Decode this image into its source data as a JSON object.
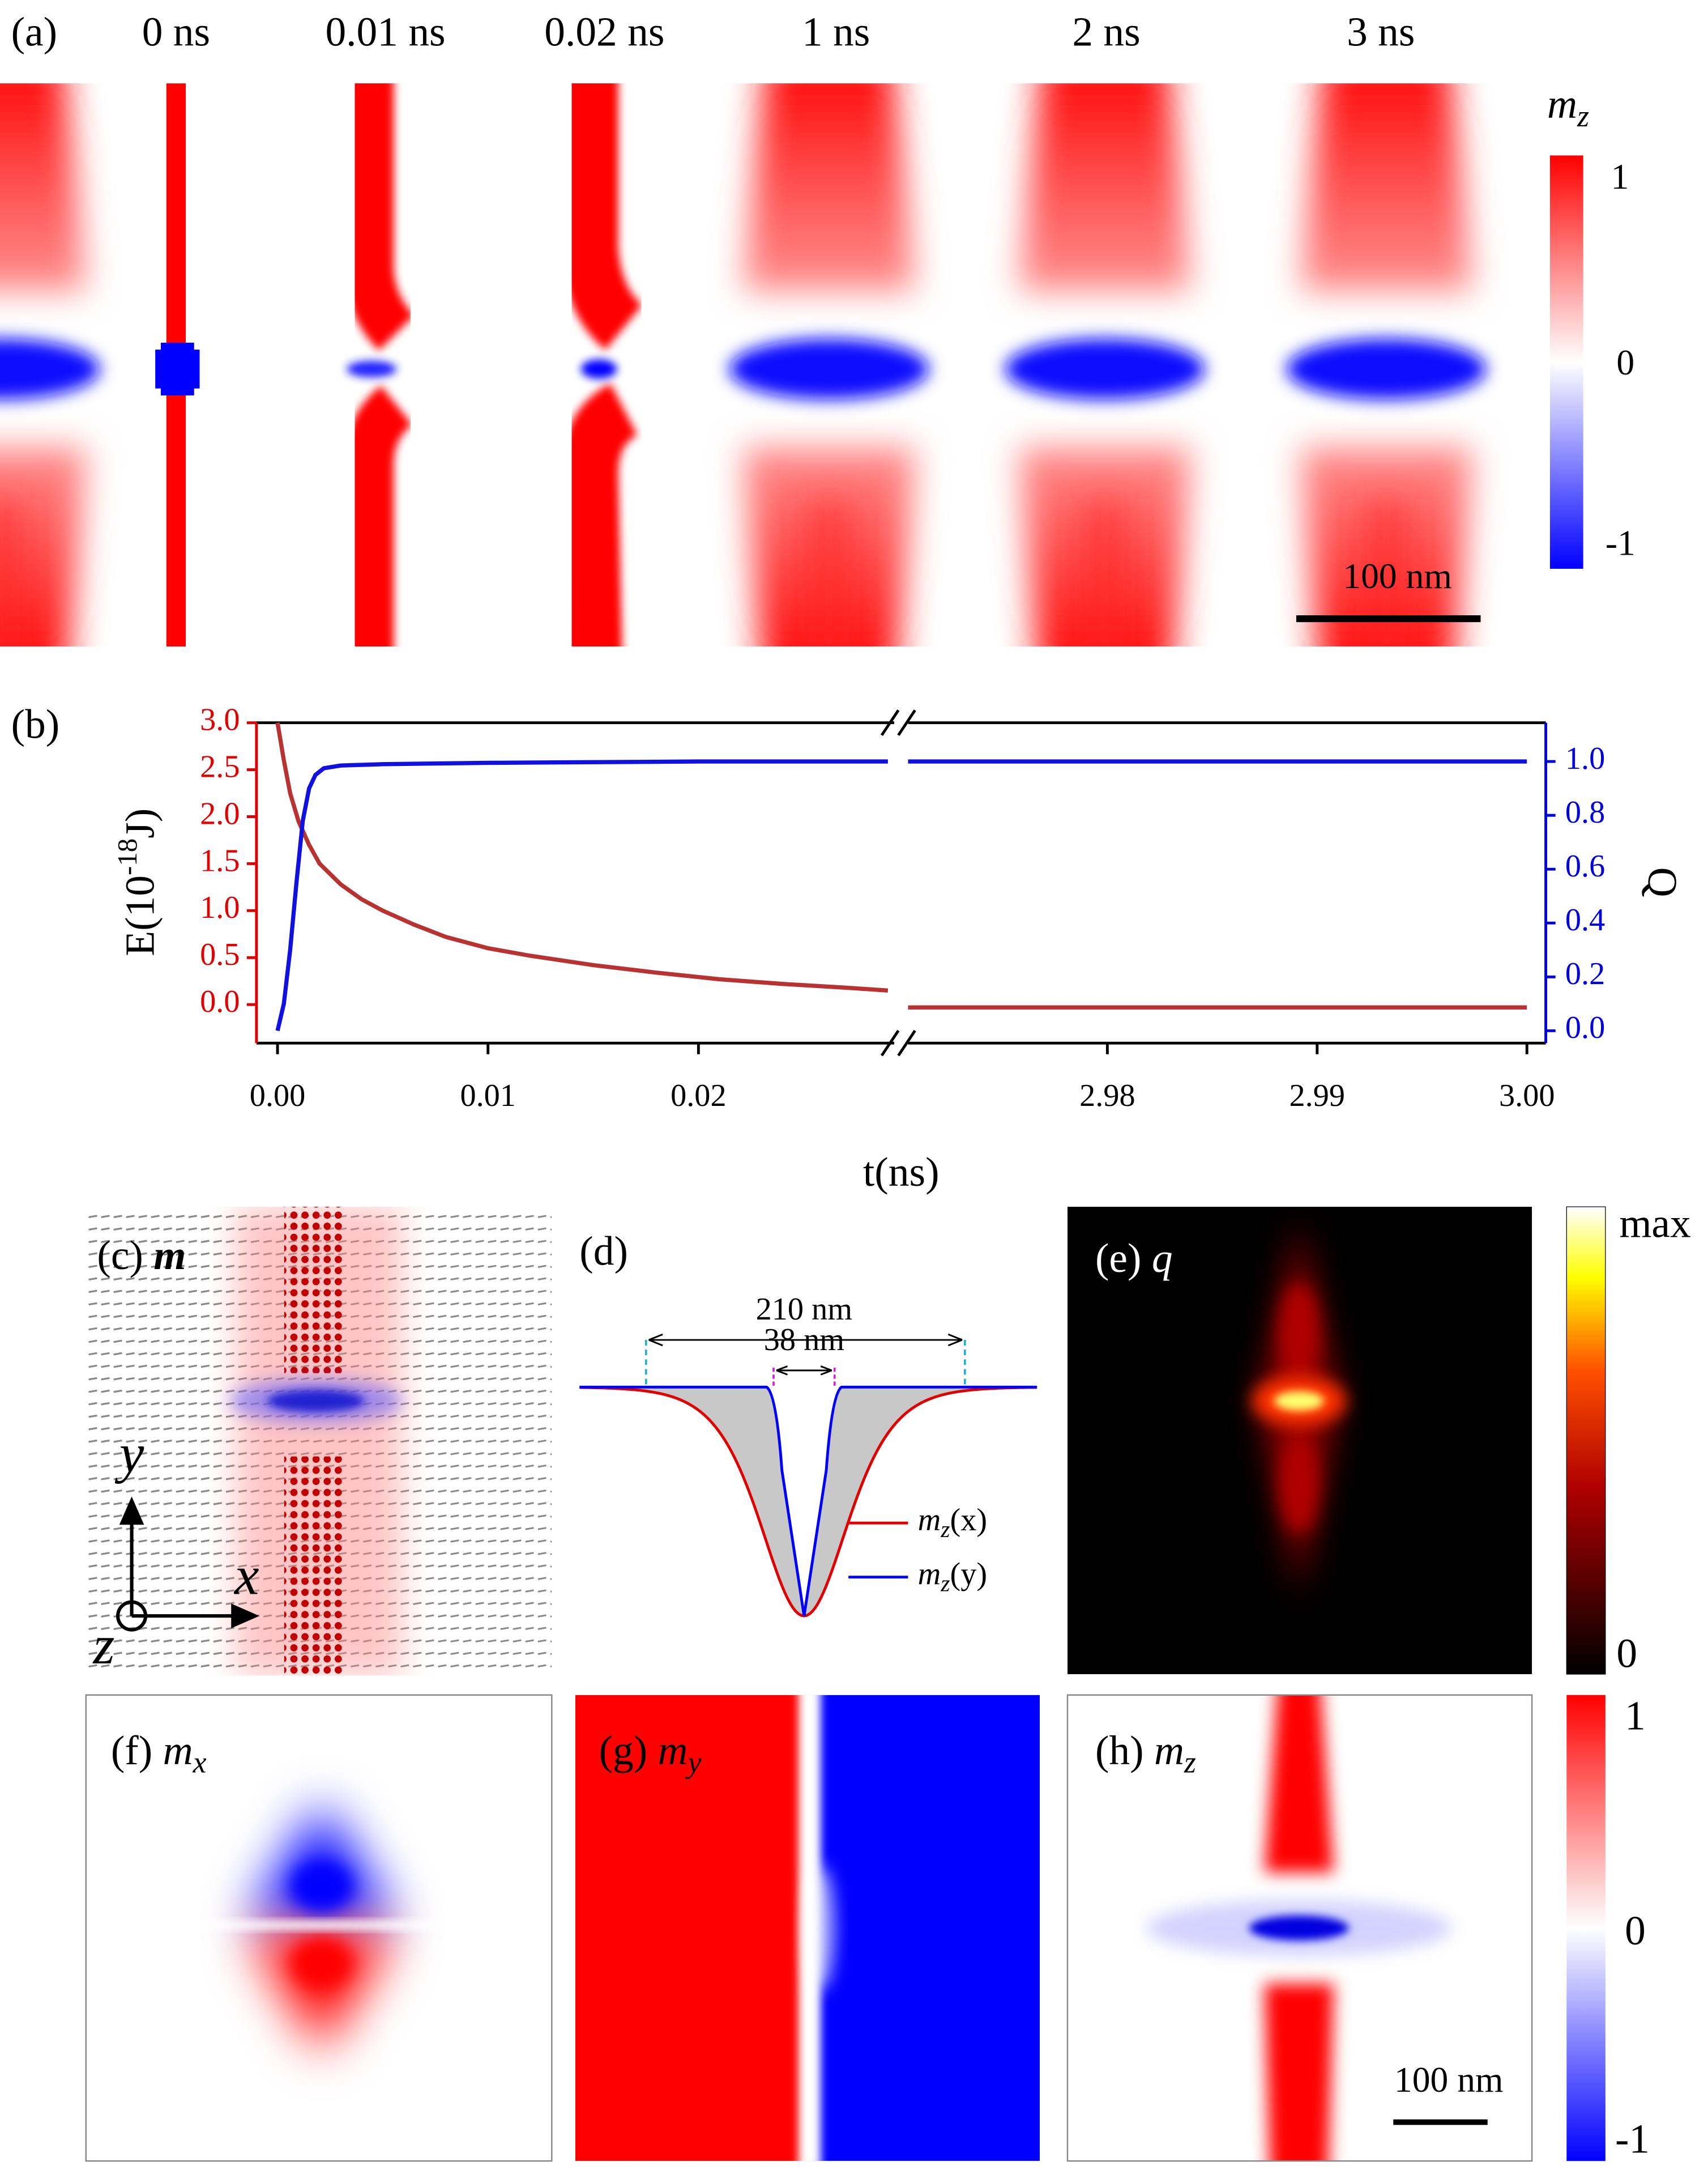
{
  "panel_a": {
    "label": "(a)",
    "times": [
      "0 ns",
      "0.01 ns",
      "0.02 ns",
      "1 ns",
      "2 ns",
      "3 ns"
    ],
    "colorbar_title": {
      "symbol": "m",
      "sub": "z"
    },
    "colorbar_ticks": [
      1,
      0,
      -1
    ],
    "scale_bar": "100 nm"
  },
  "chart_data": {
    "type": "line",
    "label": "(b)",
    "x_label": "t(ns)",
    "y_label": {
      "text": "E(10",
      "sup": "-18",
      "tail": "J)"
    },
    "y2_label": "Q",
    "x_segments": [
      [
        -0.001,
        0.0293
      ],
      [
        2.9705,
        3.0009
      ]
    ],
    "xticks": [
      {
        "value": 0,
        "label": "0.00"
      },
      {
        "value": 0.01,
        "label": "0.01"
      },
      {
        "value": 0.02,
        "label": "0.02"
      },
      {
        "value": 2.98,
        "label": "2.98"
      },
      {
        "value": 2.99,
        "label": "2.99"
      },
      {
        "value": 3,
        "label": "3.00"
      }
    ],
    "ylim": [
      -0.41,
      3.0
    ],
    "yticks": [
      {
        "value": 0,
        "label": "0.0"
      },
      {
        "value": 0.5,
        "label": "0.5"
      },
      {
        "value": 1,
        "label": "1.0"
      },
      {
        "value": 1.5,
        "label": "1.5"
      },
      {
        "value": 2,
        "label": "2.0"
      },
      {
        "value": 2.5,
        "label": "2.5"
      },
      {
        "value": 3,
        "label": "3.0"
      }
    ],
    "y2lim": [
      -0.046,
      1.144
    ],
    "y2ticks": [
      {
        "value": 0,
        "label": "0.0"
      },
      0.2,
      0.4,
      0.6,
      0.8,
      {
        "value": 1,
        "label": "1.0"
      }
    ],
    "y_color": "#e00000",
    "y2_color": "#0000e0",
    "series": [
      {
        "color": "#b83232",
        "axis": "y",
        "x": [
          0,
          0.0003,
          0.0006,
          0.001,
          0.0015,
          0.002,
          0.003,
          0.004,
          0.005,
          0.0065,
          0.008,
          0.01,
          0.012,
          0.015,
          0.018,
          0.021,
          0.024,
          0.027,
          0.029,
          2.9705,
          2.98,
          2.99,
          3.0
        ],
        "values": [
          3.0,
          2.6,
          2.25,
          1.95,
          1.7,
          1.5,
          1.28,
          1.12,
          1.0,
          0.85,
          0.72,
          0.6,
          0.52,
          0.42,
          0.34,
          0.27,
          0.22,
          0.18,
          0.15,
          -0.03,
          -0.03,
          -0.03,
          -0.03
        ]
      },
      {
        "color": "#1010e0",
        "axis": "y2",
        "x": [
          0,
          0.0003,
          0.0006,
          0.0009,
          0.0012,
          0.0015,
          0.0018,
          0.0022,
          0.003,
          0.005,
          0.01,
          0.02,
          0.029,
          2.9705,
          3.0
        ],
        "values": [
          0,
          0.1,
          0.3,
          0.55,
          0.78,
          0.9,
          0.95,
          0.975,
          0.985,
          0.99,
          0.995,
          1.0,
          1.0,
          1.0,
          1.0
        ]
      }
    ]
  },
  "panel_c": {
    "label": "(c)",
    "symbol": "m",
    "axes": [
      "y",
      "x",
      "z"
    ]
  },
  "panel_d": {
    "label": "(d)",
    "width_x": "210 nm",
    "width_y": "38 nm",
    "legend": [
      {
        "symbol": "m",
        "sub": "z",
        "arg": "(x)"
      },
      {
        "symbol": "m",
        "sub": "z",
        "arg": "(y)"
      }
    ]
  },
  "panel_e": {
    "label": "(e)",
    "symbol": "q",
    "colorbar_ticks": [
      "max",
      0
    ]
  },
  "panel_f": {
    "label": "(f)",
    "symbol": "m",
    "sub": "x"
  },
  "panel_g": {
    "label": "(g)",
    "symbol": "m",
    "sub": "y"
  },
  "panel_h": {
    "label": "(h)",
    "symbol": "m",
    "sub": "z",
    "scale_bar": "100 nm"
  },
  "colorbar_fgh": {
    "ticks": [
      1,
      0,
      -1
    ]
  }
}
